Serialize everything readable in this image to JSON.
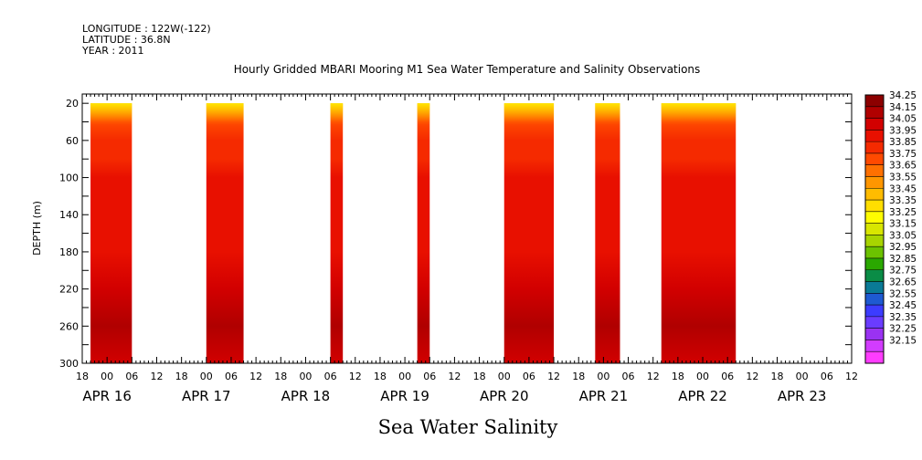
{
  "header": {
    "longitude": "LONGITUDE : 122W(-122)",
    "latitude": "LATITUDE : 36.8N",
    "year": "YEAR : 2011"
  },
  "chart_data": {
    "type": "heatmap",
    "title": "Hourly Gridded MBARI Mooring M1 Sea Water Temperature and Salinity Observations",
    "xlabel": "Sea Water Salinity",
    "ylabel": "DEPTH (m)",
    "x_start_hour": -6,
    "x_end_hour": 180,
    "xlim_label": [
      "APR 15 18:00",
      "APR 23 12:00"
    ],
    "ylim": [
      300,
      10
    ],
    "y_ticks": [
      20,
      60,
      100,
      140,
      180,
      220,
      260,
      300
    ],
    "x_hour_labels": [
      "18",
      "00",
      "06",
      "12",
      "18",
      "00",
      "06",
      "12",
      "18",
      "00",
      "06",
      "12",
      "18",
      "00",
      "06",
      "12",
      "18",
      "00",
      "06",
      "12",
      "18",
      "00",
      "06",
      "12",
      "18",
      "00",
      "06",
      "12",
      "18",
      "00",
      "06",
      "12"
    ],
    "x_date_labels": [
      "APR 16",
      "APR 17",
      "APR 18",
      "APR 19",
      "APR 20",
      "APR 21",
      "APR 22",
      "APR 23"
    ],
    "data_blocks": [
      {
        "start": "APR 15 20:00",
        "end": "APR 16 06:00"
      },
      {
        "start": "APR 17 00:00",
        "end": "APR 17 09:00"
      },
      {
        "start": "APR 18 06:00",
        "end": "APR 18 09:00"
      },
      {
        "start": "APR 19 03:00",
        "end": "APR 19 06:00"
      },
      {
        "start": "APR 20 00:00",
        "end": "APR 20 12:00"
      },
      {
        "start": "APR 20 22:00",
        "end": "APR 21 04:00"
      },
      {
        "start": "APR 21 14:00",
        "end": "APR 22 08:00"
      }
    ],
    "salinity_profile": {
      "depth": [
        20,
        40,
        60,
        80,
        100,
        140,
        180,
        220,
        260,
        300
      ],
      "value": [
        33.55,
        33.8,
        33.9,
        33.95,
        33.97,
        34.0,
        34.05,
        34.1,
        34.17,
        34.15
      ]
    },
    "colorbar": {
      "levels": [
        "34.25",
        "34.15",
        "34.05",
        "33.95",
        "33.85",
        "33.75",
        "33.65",
        "33.55",
        "33.45",
        "33.35",
        "33.25",
        "33.15",
        "33.05",
        "32.95",
        "32.85",
        "32.75",
        "32.65",
        "32.55",
        "32.45",
        "32.35",
        "32.25",
        "32.15"
      ],
      "colors": [
        "#8c0000",
        "#b00000",
        "#d20000",
        "#e81000",
        "#f52a00",
        "#ff4a00",
        "#ff7000",
        "#ff9600",
        "#ffbc00",
        "#ffde00",
        "#fffc00",
        "#d8e600",
        "#a8d400",
        "#6cc200",
        "#2aa800",
        "#0a8c46",
        "#0a7a96",
        "#1e5ad2",
        "#3c3cff",
        "#6a3cff",
        "#9a32f2",
        "#d23cff",
        "#ff3cff"
      ]
    }
  }
}
